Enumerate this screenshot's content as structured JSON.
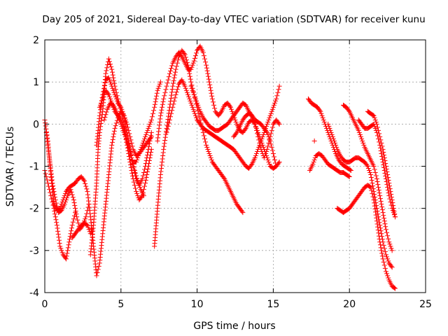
{
  "chart_data": {
    "type": "scatter",
    "title": "Day 205 of 2021, Sidereal Day-to-day VTEC variation (SDTVAR) for receiver kunu",
    "xlabel": "GPS time / hours",
    "ylabel": "SDTVAR / TECUs",
    "xlim": [
      0,
      25
    ],
    "ylim": [
      -4,
      2
    ],
    "xticks": [
      "0",
      "5",
      "10",
      "15",
      "20",
      "25"
    ],
    "yticks": [
      "-4",
      "-3",
      "-2",
      "-1",
      "0",
      "1",
      "2"
    ],
    "grid": true,
    "marker": "plus",
    "color": "#ff0000",
    "series": [
      {
        "x": [
          0.0,
          0.2,
          0.4,
          0.6,
          0.8,
          1.0,
          1.2,
          1.4,
          1.6,
          1.8,
          2.0,
          2.2,
          2.4,
          2.6,
          2.8,
          3.0,
          3.2,
          3.4,
          3.6,
          3.8,
          4.0,
          4.2,
          4.4,
          4.6,
          4.8,
          5.0,
          5.2,
          5.4,
          5.6,
          5.8,
          6.0,
          6.2,
          6.4,
          6.6,
          6.8,
          7.0
        ],
        "y": [
          0.1,
          -0.4,
          -1.2,
          -1.9,
          -2.05,
          -2.0,
          -1.8,
          -1.6,
          -1.5,
          -1.45,
          -1.4,
          -1.3,
          -1.25,
          -1.35,
          -1.6,
          -2.2,
          -2.9,
          -3.6,
          -3.3,
          -2.6,
          -1.9,
          -1.2,
          -0.5,
          -0.1,
          0.15,
          0.3,
          0.2,
          0.0,
          -0.3,
          -0.6,
          -0.75,
          -0.7,
          -0.6,
          -0.5,
          -0.4,
          -0.3
        ]
      },
      {
        "x": [
          0.0,
          0.2,
          0.4,
          0.6,
          0.8,
          1.0,
          1.2,
          1.4,
          1.6,
          1.8,
          2.0
        ],
        "y": [
          -1.1,
          -1.4,
          -1.7,
          -2.0,
          -2.4,
          -2.9,
          -3.1,
          -3.2,
          -2.8,
          -2.4,
          -2.1
        ]
      },
      {
        "x": [
          0.1,
          0.3,
          0.5,
          0.7,
          0.9,
          1.1,
          1.3,
          1.5,
          1.7,
          1.9,
          2.1,
          2.3,
          2.5,
          2.7,
          2.9
        ],
        "y": [
          -0.2,
          -0.8,
          -1.4,
          -1.8,
          -2.1,
          -2.05,
          -1.9,
          -1.7,
          -1.55,
          -1.8,
          -2.2,
          -2.5,
          -2.4,
          -2.2,
          -1.9
        ]
      },
      {
        "x": [
          1.8,
          2.0,
          2.2,
          2.4,
          2.6,
          2.8,
          3.0,
          3.1
        ],
        "y": [
          -2.7,
          -2.6,
          -2.5,
          -2.4,
          -2.35,
          -2.4,
          -2.6,
          -2.5
        ]
      },
      {
        "x": [
          3.0,
          3.2,
          3.4,
          3.5,
          3.6,
          3.8,
          4.0,
          4.2,
          4.4,
          4.6,
          4.8,
          5.0,
          5.2,
          5.4,
          5.6,
          5.8,
          6.0,
          6.2,
          6.4,
          6.6,
          6.8,
          7.0,
          7.2,
          7.4,
          7.6
        ],
        "y": [
          -3.1,
          -2.4,
          -1.4,
          -0.6,
          -0.2,
          0.3,
          1.2,
          1.55,
          1.3,
          0.9,
          0.6,
          0.3,
          0.0,
          -0.4,
          -0.7,
          -0.9,
          -0.9,
          -0.7,
          -0.5,
          -0.3,
          -0.1,
          0.1,
          0.4,
          0.8,
          1.0
        ]
      },
      {
        "x": [
          3.4,
          3.6,
          3.8,
          4.0,
          4.2,
          4.4,
          4.6,
          4.8,
          5.0,
          5.2,
          5.4,
          5.6,
          5.8,
          6.0,
          6.2,
          6.4,
          6.6,
          6.8,
          7.0
        ],
        "y": [
          -0.5,
          0.2,
          0.7,
          1.05,
          1.1,
          0.9,
          0.7,
          0.5,
          0.4,
          0.2,
          -0.2,
          -0.6,
          -1.0,
          -1.3,
          -1.45,
          -1.3,
          -1.0,
          -0.6,
          -0.2
        ]
      },
      {
        "x": [
          3.6,
          3.8,
          4.0,
          4.2,
          4.4,
          4.6,
          4.8,
          5.0,
          5.2,
          5.4,
          5.6,
          5.8,
          6.0,
          6.2,
          6.4,
          6.6,
          6.8,
          7.0
        ],
        "y": [
          0.4,
          0.6,
          0.8,
          0.7,
          0.5,
          0.3,
          0.2,
          0.1,
          -0.1,
          -0.5,
          -0.9,
          -1.3,
          -1.6,
          -1.8,
          -1.7,
          -1.4,
          -1.0,
          -0.6
        ]
      },
      {
        "x": [
          3.9,
          4.1,
          4.3,
          4.5,
          4.7,
          4.9,
          5.1,
          5.3,
          5.5,
          5.7,
          5.9,
          6.1,
          6.3,
          6.5
        ],
        "y": [
          0.1,
          0.35,
          0.5,
          0.45,
          0.3,
          0.1,
          -0.1,
          -0.3,
          -0.5,
          -0.8,
          -1.1,
          -1.35,
          -1.55,
          -1.7
        ]
      },
      {
        "x": [
          7.2,
          7.4,
          7.6,
          7.8,
          8.0,
          8.2,
          8.4,
          8.6,
          8.8,
          9.0,
          9.2,
          9.4,
          9.6,
          9.8,
          10.0,
          10.2,
          10.4,
          10.6,
          10.8,
          11.0,
          11.2,
          11.4,
          11.6,
          11.8,
          12.0,
          12.2,
          12.4,
          12.6,
          12.8,
          13.0
        ],
        "y": [
          -2.9,
          -2.0,
          -1.2,
          -0.6,
          -0.1,
          0.4,
          0.9,
          1.3,
          1.6,
          1.75,
          1.65,
          1.4,
          1.0,
          0.7,
          0.4,
          0.1,
          -0.2,
          -0.5,
          -0.7,
          -0.9,
          -1.0,
          -1.1,
          -1.2,
          -1.3,
          -1.45,
          -1.6,
          -1.75,
          -1.9,
          -2.0,
          -2.1
        ]
      },
      {
        "x": [
          7.4,
          7.6,
          7.8,
          8.0,
          8.2,
          8.4,
          8.6,
          8.8,
          9.0,
          9.2,
          9.4,
          9.6,
          9.8,
          10.0,
          10.2,
          10.4,
          10.6,
          10.8,
          11.0,
          11.2,
          11.4,
          11.6,
          11.8,
          12.0,
          12.2,
          12.4,
          12.6,
          12.8,
          13.0,
          13.2,
          13.4,
          13.6,
          13.8,
          14.0,
          14.2,
          14.4,
          14.6,
          14.8,
          15.0,
          15.2,
          15.4
        ],
        "y": [
          -0.4,
          0.2,
          0.6,
          0.9,
          1.2,
          1.45,
          1.6,
          1.7,
          1.6,
          1.45,
          1.3,
          1.3,
          1.5,
          1.75,
          1.85,
          1.7,
          1.4,
          1.0,
          0.6,
          0.3,
          0.2,
          0.3,
          0.45,
          0.5,
          0.4,
          0.2,
          0.0,
          -0.15,
          -0.2,
          -0.1,
          0.05,
          0.1,
          0.0,
          -0.2,
          -0.4,
          -0.6,
          -0.8,
          -1.0,
          -1.05,
          -1.0,
          -0.9
        ]
      },
      {
        "x": [
          8.0,
          8.2,
          8.4,
          8.6,
          8.8,
          9.0,
          9.2,
          9.4,
          9.6,
          9.8,
          10.0,
          10.2,
          10.4,
          10.6,
          10.8,
          11.0,
          11.2,
          11.4,
          11.6,
          11.8,
          12.0,
          12.2,
          12.4,
          12.6,
          12.8,
          13.0,
          13.2,
          13.4,
          13.6,
          13.8,
          14.0,
          14.2,
          14.4,
          14.6,
          14.8,
          15.0,
          15.2,
          15.4
        ],
        "y": [
          -0.2,
          0.1,
          0.4,
          0.7,
          0.95,
          1.05,
          0.9,
          0.7,
          0.5,
          0.3,
          0.1,
          0.0,
          -0.1,
          -0.15,
          -0.2,
          -0.25,
          -0.3,
          -0.35,
          -0.4,
          -0.45,
          -0.5,
          -0.55,
          -0.6,
          -0.7,
          -0.8,
          -0.9,
          -1.0,
          -1.05,
          -0.95,
          -0.8,
          -0.6,
          -0.4,
          -0.2,
          0.0,
          0.2,
          0.4,
          0.6,
          0.9
        ]
      },
      {
        "x": [
          9.6,
          9.8,
          10.0,
          10.2,
          10.4,
          10.6,
          10.8,
          11.0,
          11.2,
          11.4,
          11.6,
          11.8,
          12.0,
          12.2,
          12.4,
          12.6,
          12.8,
          13.0,
          13.2,
          13.4,
          13.6,
          13.8,
          14.0,
          14.2,
          14.4,
          14.6,
          14.8,
          15.0,
          15.2
        ],
        "y": [
          0.9,
          0.7,
          0.5,
          0.3,
          0.15,
          0.05,
          -0.05,
          -0.1,
          -0.15,
          -0.15,
          -0.1,
          -0.05,
          0.0,
          0.1,
          0.2,
          0.3,
          0.4,
          0.5,
          0.45,
          0.3,
          0.2,
          0.1,
          0.05,
          0.0,
          -0.1,
          -0.2,
          -0.4,
          -0.7,
          -1.0
        ]
      },
      {
        "x": [
          12.4,
          12.6,
          12.8,
          13.0,
          13.2,
          13.4,
          13.6,
          13.8,
          14.0,
          14.2,
          14.4,
          14.6,
          14.8,
          15.0,
          15.2,
          15.4
        ],
        "y": [
          -0.3,
          -0.2,
          -0.05,
          0.1,
          0.2,
          0.25,
          0.2,
          0.0,
          -0.3,
          -0.6,
          -0.8,
          -0.6,
          -0.3,
          0.0,
          0.1,
          0.0
        ]
      },
      {
        "x": [
          17.3,
          17.5,
          17.7,
          17.9,
          18.1,
          18.3,
          18.5,
          18.7,
          18.9,
          19.1,
          19.3,
          19.5,
          19.7,
          19.9,
          20.1
        ],
        "y": [
          0.6,
          0.5,
          0.45,
          0.4,
          0.3,
          0.1,
          -0.1,
          -0.3,
          -0.5,
          -0.7,
          -0.85,
          -0.95,
          -1.0,
          -1.05,
          -1.1
        ]
      },
      {
        "x": [
          17.4,
          17.6,
          17.8,
          18.0,
          18.2,
          18.4,
          18.6,
          18.8,
          19.0,
          19.2,
          19.4,
          19.6,
          19.8,
          20.0
        ],
        "y": [
          -1.1,
          -0.95,
          -0.75,
          -0.7,
          -0.75,
          -0.85,
          -0.95,
          -1.0,
          -1.05,
          -1.1,
          -1.15,
          -1.15,
          -1.2,
          -1.25
        ]
      },
      {
        "x": [
          19.2,
          19.4,
          19.6,
          19.8,
          20.0,
          20.2,
          20.4,
          20.6,
          20.8,
          21.0,
          21.2,
          21.4,
          21.6,
          21.8,
          22.0,
          22.2,
          22.4,
          22.6,
          22.8,
          23.0
        ],
        "y": [
          -2.0,
          -2.05,
          -2.1,
          -2.05,
          -2.0,
          -1.9,
          -1.8,
          -1.7,
          -1.6,
          -1.5,
          -1.45,
          -1.5,
          -1.8,
          -2.3,
          -2.8,
          -3.2,
          -3.5,
          -3.7,
          -3.85,
          -3.9
        ]
      },
      {
        "x": [
          18.6,
          18.8,
          19.0,
          19.2,
          19.4,
          19.6,
          19.8,
          20.0,
          20.2,
          20.4,
          20.6,
          20.8,
          21.0,
          21.2,
          21.4,
          21.6,
          21.8,
          22.0,
          22.2,
          22.4,
          22.6,
          22.8
        ],
        "y": [
          0.0,
          -0.2,
          -0.4,
          -0.6,
          -0.75,
          -0.85,
          -0.9,
          -0.9,
          -0.85,
          -0.8,
          -0.8,
          -0.85,
          -0.9,
          -1.0,
          -1.2,
          -1.6,
          -2.0,
          -2.4,
          -2.8,
          -3.1,
          -3.3,
          -3.4
        ]
      },
      {
        "x": [
          19.6,
          19.8,
          20.0,
          20.2,
          20.4,
          20.6,
          20.8,
          21.0,
          21.2,
          21.4,
          21.6,
          21.8,
          22.0,
          22.2,
          22.4,
          22.6,
          22.8
        ],
        "y": [
          0.45,
          0.4,
          0.3,
          0.15,
          0.0,
          -0.15,
          -0.35,
          -0.55,
          -0.7,
          -0.85,
          -1.0,
          -1.3,
          -1.7,
          -2.1,
          -2.5,
          -2.8,
          -3.0
        ]
      },
      {
        "x": [
          20.6,
          20.8,
          21.0,
          21.2,
          21.4,
          21.6,
          21.8,
          22.0,
          22.2,
          22.4,
          22.6,
          22.8,
          23.0
        ],
        "y": [
          0.1,
          0.0,
          -0.1,
          -0.1,
          -0.05,
          0.0,
          -0.2,
          -0.5,
          -0.9,
          -1.3,
          -1.7,
          -2.0,
          -2.2
        ]
      },
      {
        "x": [
          21.2,
          21.4,
          21.6,
          21.8,
          22.0,
          22.2,
          22.4,
          22.6,
          22.8,
          23.0
        ],
        "y": [
          0.3,
          0.25,
          0.2,
          0.0,
          -0.3,
          -0.6,
          -1.0,
          -1.4,
          -1.8,
          -2.2
        ]
      },
      {
        "x": [
          17.7
        ],
        "y": [
          -0.4
        ]
      }
    ]
  }
}
